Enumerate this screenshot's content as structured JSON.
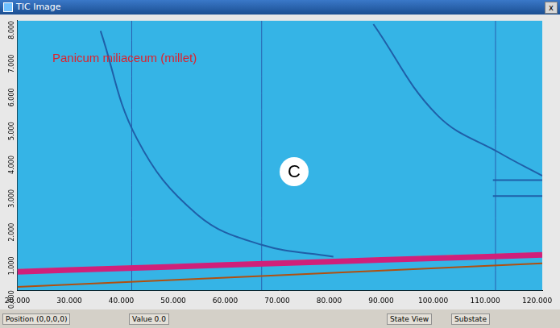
{
  "window": {
    "title": "TIC Image",
    "close": "x"
  },
  "chart_data": {
    "type": "line",
    "title": "Panicum miliaceum (millet)",
    "annotations": [
      "C"
    ],
    "color": "#35b4e6",
    "grid": false,
    "xlim": [
      20,
      121
    ],
    "xticks": [
      {
        "value": 20,
        "label": "20.000"
      },
      {
        "value": 30,
        "label": "30.000"
      },
      {
        "value": 40,
        "label": "40.000"
      },
      {
        "value": 50,
        "label": "50.000"
      },
      {
        "value": 60,
        "label": "60.000"
      },
      {
        "value": 70,
        "label": "70.000"
      },
      {
        "value": 80,
        "label": "80.000"
      },
      {
        "value": 90,
        "label": "90.000"
      },
      {
        "value": 100,
        "label": "100.000"
      },
      {
        "value": 110,
        "label": "110.000"
      },
      {
        "value": 120,
        "label": "120.000"
      }
    ],
    "ylim": [
      0,
      8
    ],
    "yticks": [
      {
        "value": 0,
        "label": "0.000"
      },
      {
        "value": 1,
        "label": "1.000"
      },
      {
        "value": 2,
        "label": "2.000"
      },
      {
        "value": 3,
        "label": "3.000"
      },
      {
        "value": 4,
        "label": "4.000"
      },
      {
        "value": 5,
        "label": "5.000"
      },
      {
        "value": 6,
        "label": "6.000"
      },
      {
        "value": 7,
        "label": "7.000"
      },
      {
        "value": 8,
        "label": "8.000"
      }
    ],
    "series": [
      {
        "color": "#b05010",
        "line_style": "solid",
        "x": [
          20,
          121
        ],
        "values": [
          0.1,
          0.8
        ]
      },
      {
        "color": "#d0207a",
        "line_style": "thick",
        "x": [
          20,
          40,
          60,
          80,
          100,
          121
        ],
        "values": [
          0.55,
          0.65,
          0.75,
          0.85,
          0.95,
          1.05
        ]
      },
      {
        "color": "#e8e000",
        "line_style": "dashed",
        "x": [
          20,
          40,
          60,
          80,
          100,
          121
        ],
        "values": [
          0.6,
          0.7,
          0.8,
          0.9,
          1.0,
          1.1
        ]
      },
      {
        "color": "#1f5fa8",
        "line_style": "solid",
        "x": [
          36,
          43,
          54.6,
          67,
          80.8
        ],
        "values": [
          7.7,
          4.5,
          2.25,
          1.35,
          1.0
        ]
      },
      {
        "color": "#1f5fa8",
        "line_style": "solid",
        "x": [
          88.5,
          100.8,
          113,
          121
        ],
        "values": [
          7.9,
          5.2,
          4.06,
          3.4
        ]
      },
      {
        "color": "#1f5fa8",
        "line_style": "solid",
        "x": [
          111.5,
          121
        ],
        "values": [
          3.27,
          3.27
        ]
      },
      {
        "color": "#1f5fa8",
        "line_style": "solid",
        "x": [
          111.5,
          121
        ],
        "values": [
          2.8,
          2.8
        ]
      },
      {
        "color": "#2a60b0",
        "line_style": "thin",
        "x": [
          42,
          42
        ],
        "values": [
          0,
          8
        ]
      },
      {
        "color": "#2a60b0",
        "line_style": "thin",
        "x": [
          67,
          67
        ],
        "values": [
          0,
          8
        ]
      },
      {
        "color": "#2a60b0",
        "line_style": "thin",
        "x": [
          112,
          112
        ],
        "values": [
          0,
          8
        ]
      }
    ]
  },
  "status_bar": [
    "Position (0,0,0,0)",
    "Value 0.0",
    "State View",
    "Substate"
  ]
}
